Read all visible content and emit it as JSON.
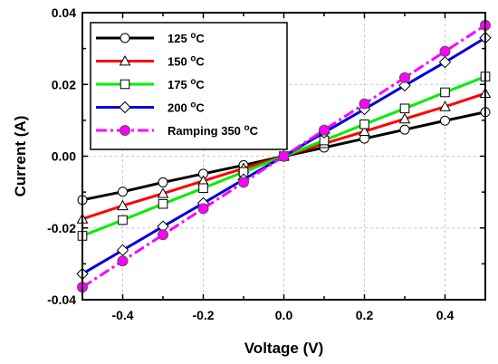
{
  "chart_data": {
    "type": "line",
    "xlabel": "Voltage (V)",
    "ylabel": "Current (A)",
    "xlim": [
      -0.5,
      0.5
    ],
    "ylim": [
      -0.04,
      0.04
    ],
    "x_ticks": [
      "-0.4",
      "-0.2",
      "0.0",
      "0.2",
      "0.4"
    ],
    "y_ticks": [
      "-0.04",
      "-0.02",
      "0.00",
      "0.02",
      "0.04"
    ],
    "grid": true,
    "legend_placement": "top-left",
    "x": [
      -0.5,
      -0.4,
      -0.3,
      -0.2,
      -0.1,
      0.0,
      0.1,
      0.2,
      0.3,
      0.4,
      0.5
    ],
    "series": [
      {
        "name": "125",
        "unit": "oC",
        "color": "#000000",
        "marker": "circle",
        "filled": false,
        "dash": "solid",
        "values": [
          -0.0122,
          -0.0099,
          -0.0073,
          -0.0049,
          -0.0025,
          0.0,
          0.0024,
          0.0049,
          0.0074,
          0.0099,
          0.0123
        ]
      },
      {
        "name": "150",
        "unit": "oC",
        "color": "#ff0000",
        "marker": "triangle",
        "filled": false,
        "dash": "solid",
        "values": [
          -0.0175,
          -0.0138,
          -0.0104,
          -0.0069,
          -0.0034,
          0.0,
          0.0035,
          0.0069,
          0.0104,
          0.0138,
          0.0175
        ]
      },
      {
        "name": "175",
        "unit": "oC",
        "color": "#00ee00",
        "marker": "square",
        "filled": false,
        "dash": "solid",
        "values": [
          -0.0222,
          -0.0178,
          -0.0133,
          -0.0089,
          -0.0044,
          0.0,
          0.0044,
          0.0089,
          0.0133,
          0.0178,
          0.0222
        ]
      },
      {
        "name": "200",
        "unit": "oC",
        "color": "#0000dd",
        "marker": "diamond",
        "filled": false,
        "dash": "solid",
        "values": [
          -0.0328,
          -0.0262,
          -0.0196,
          -0.0131,
          -0.0065,
          0.0,
          0.0066,
          0.0131,
          0.0197,
          0.0262,
          0.033
        ]
      },
      {
        "name": "Ramping 350",
        "unit": "oC",
        "color": "#ff00ff",
        "marker": "circle",
        "filled": true,
        "dash": "dashdot",
        "values": [
          -0.0365,
          -0.0292,
          -0.0219,
          -0.0146,
          -0.0073,
          0.0,
          0.0073,
          0.0146,
          0.0219,
          0.0292,
          0.0365
        ]
      }
    ]
  }
}
